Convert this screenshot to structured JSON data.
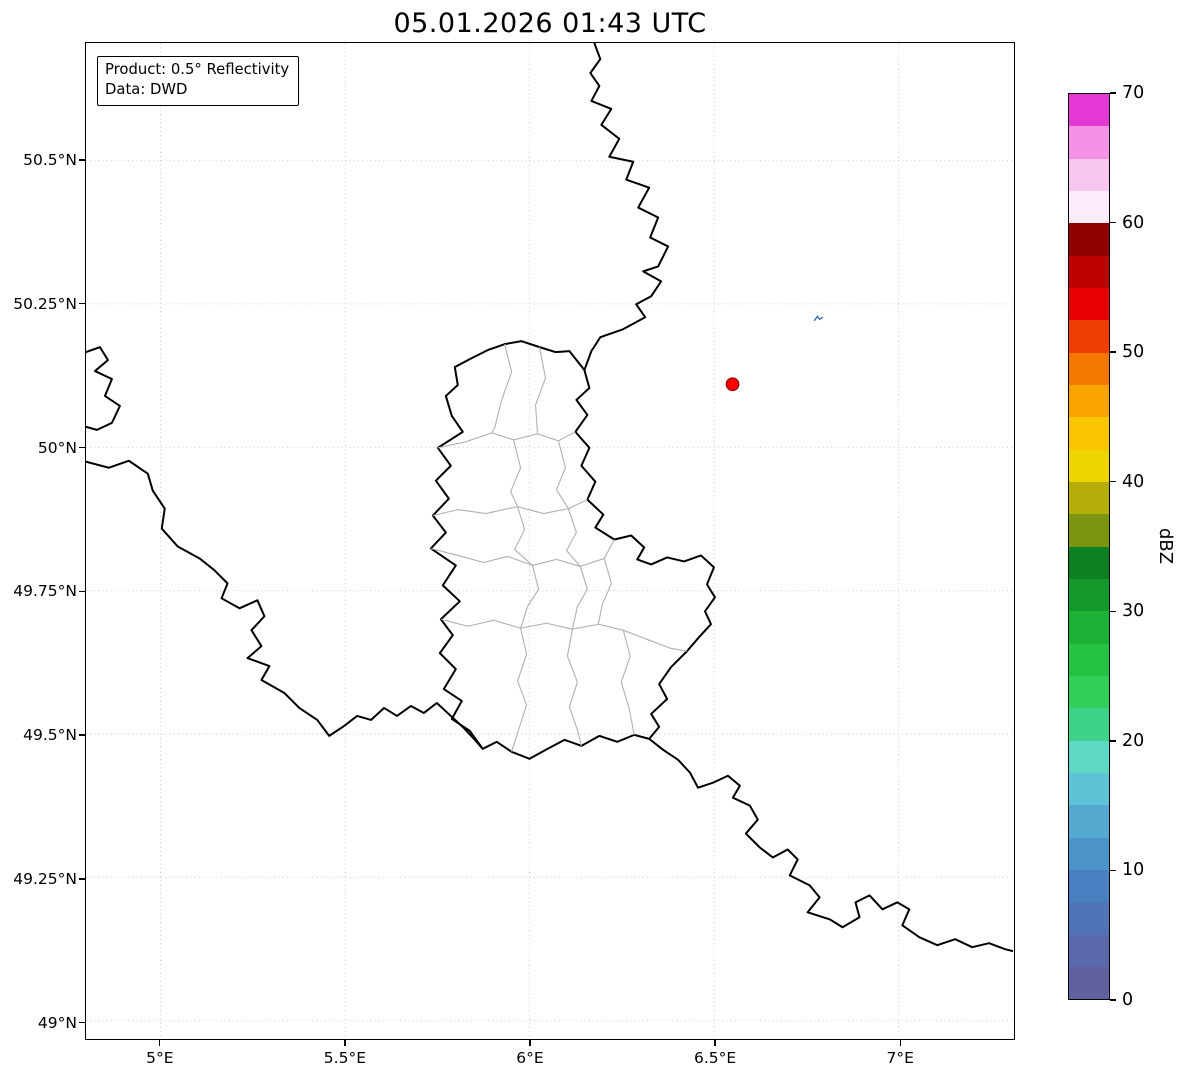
{
  "title": "05.01.2026 01:43 UTC",
  "info_box": {
    "lines": [
      "Product: 0.5° Reflectivity",
      "Data: DWD"
    ]
  },
  "map": {
    "extent": {
      "lon_min": 4.798,
      "lon_max": 7.31,
      "lat_min": 48.97,
      "lat_max": 50.705
    },
    "x_ticks": [
      {
        "value": 5,
        "label": "5°E"
      },
      {
        "value": 5.5,
        "label": "5.5°E"
      },
      {
        "value": 6,
        "label": "6°E"
      },
      {
        "value": 6.5,
        "label": "6.5°E"
      },
      {
        "value": 7,
        "label": "7°E"
      }
    ],
    "y_ticks": [
      {
        "value": 50.5,
        "label": "50.5°N"
      },
      {
        "value": 50.25,
        "label": "50.25°N"
      },
      {
        "value": 50,
        "label": "50°N"
      },
      {
        "value": 49.75,
        "label": "49.75°N"
      },
      {
        "value": 49.5,
        "label": "49.5°N"
      },
      {
        "value": 49.25,
        "label": "49.25°N"
      },
      {
        "value": 49,
        "label": "49°N"
      }
    ],
    "radar_site": {
      "lon": 6.55,
      "lat": 50.11,
      "color": "#ff0000",
      "edge_color": "#8b0000"
    },
    "echo": {
      "lon": 6.783,
      "lat": 50.225,
      "color": "#3d6fb4"
    }
  },
  "colorbar": {
    "label": "dBZ",
    "min": 0,
    "max": 70,
    "ticks": [
      0,
      10,
      20,
      30,
      40,
      50,
      60,
      70
    ],
    "segments_bottom_to_top": [
      "#62619f",
      "#5a69ac",
      "#5173b8",
      "#4a80c2",
      "#4b94c9",
      "#54aad1",
      "#5cc4d6",
      "#5ed7c3",
      "#3fd389",
      "#32d058",
      "#25c243",
      "#1bb136",
      "#13992b",
      "#0d8022",
      "#7a950f",
      "#b5ad08",
      "#edd500",
      "#f9c500",
      "#f9a400",
      "#f47800",
      "#ee3d00",
      "#e60000",
      "#bc0000",
      "#900000",
      "#fdedfa",
      "#f9c6f0",
      "#f392e7",
      "#e438d4"
    ]
  },
  "style": {
    "border_color": "#000000",
    "canton_color": "#b0b0b0",
    "grid_color": "#c6c6c6",
    "background": "#ffffff"
  }
}
